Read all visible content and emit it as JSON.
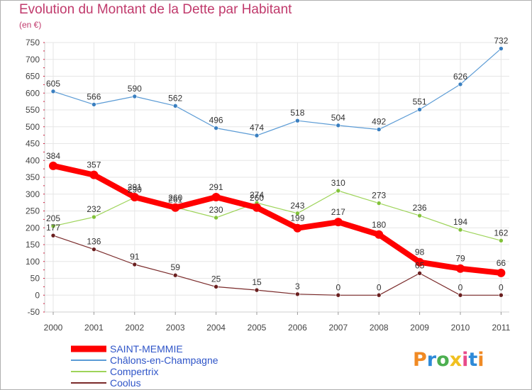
{
  "header": {
    "title": "Evolution du Montant de la Dette par Habitant",
    "unit": "(en €)"
  },
  "logo": {
    "text": "Proxiti",
    "letter_colors": [
      "#f08a24",
      "#2e8ad8",
      "#4caf50",
      "#f0c020",
      "#e84a8a",
      "#2e8ad8",
      "#f08a24"
    ]
  },
  "colors": {
    "title": "#c03a6c",
    "grid": "#e6e6e6",
    "axis": "#cfcfcf",
    "tick_marker": "#d02040"
  },
  "chart_data": {
    "type": "line",
    "title": "Evolution du Montant de la Dette par Habitant",
    "subtitle": "(en €)",
    "xlabel": "",
    "ylabel": "",
    "x": [
      "2000",
      "2001",
      "2002",
      "2003",
      "2004",
      "2005",
      "2006",
      "2007",
      "2008",
      "2009",
      "2010",
      "2011"
    ],
    "ylim": [
      -50,
      750
    ],
    "yticks": [
      -50,
      0,
      50,
      100,
      150,
      200,
      250,
      300,
      350,
      400,
      450,
      500,
      550,
      600,
      650,
      700,
      750
    ],
    "grid": true,
    "legend_position": "bottom-left",
    "series": [
      {
        "name": "Châlons-en-Champagne",
        "color": "#5b9bd5",
        "point_color": "#3a7fc0",
        "width": 1.2,
        "radius": 3,
        "values": [
          605,
          566,
          590,
          562,
          496,
          474,
          518,
          504,
          492,
          551,
          626,
          732
        ]
      },
      {
        "name": "Compertrix",
        "color": "#9ed45a",
        "point_color": "#82c23a",
        "width": 1.2,
        "radius": 3,
        "values": [
          205,
          232,
          290,
          261,
          230,
          274,
          243,
          310,
          273,
          236,
          194,
          162
        ]
      },
      {
        "name": "Coolus",
        "color": "#7a2a2a",
        "point_color": "#6a1f1f",
        "width": 1.2,
        "radius": 3,
        "values": [
          177,
          136,
          91,
          59,
          25,
          15,
          3,
          0,
          0,
          65,
          0,
          0
        ]
      },
      {
        "name": "SAINT-MEMMIE",
        "color": "#ff0000",
        "point_color": "#ff0000",
        "width": 8,
        "radius": 6,
        "values": [
          384,
          357,
          291,
          260,
          291,
          260,
          199,
          217,
          180,
          98,
          79,
          66
        ]
      }
    ]
  }
}
